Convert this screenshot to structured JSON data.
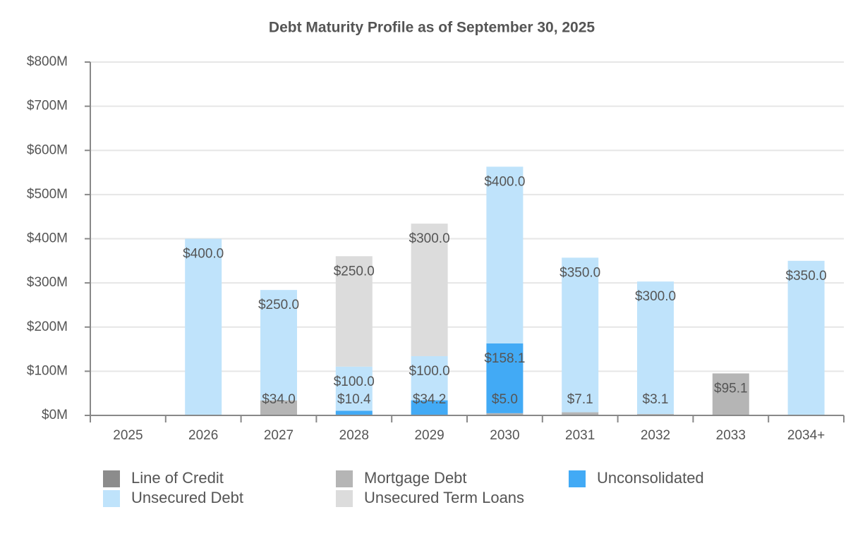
{
  "chart_data": {
    "type": "stacked_bar",
    "title": "Debt Maturity Profile as of September 30, 2025",
    "categories": [
      "2025",
      "2026",
      "2027",
      "2028",
      "2029",
      "2030",
      "2031",
      "2032",
      "2033",
      "2034+"
    ],
    "series": [
      {
        "name": "Line of Credit",
        "color": "#8c8c8c",
        "values": [
          null,
          null,
          null,
          null,
          null,
          null,
          null,
          null,
          null,
          null
        ]
      },
      {
        "name": "Mortgage Debt",
        "color": "#b5b5b5",
        "values": [
          null,
          null,
          34.0,
          null,
          null,
          5.0,
          7.1,
          3.1,
          95.1,
          null
        ],
        "value_labels": [
          null,
          null,
          "$34.0",
          null,
          null,
          "$5.0",
          "$7.1",
          "$3.1",
          "$95.1",
          null
        ]
      },
      {
        "name": "Unconsolidated",
        "color": "#42aaf5",
        "values": [
          null,
          null,
          null,
          10.4,
          34.2,
          158.1,
          null,
          null,
          null,
          null
        ],
        "value_labels": [
          null,
          null,
          null,
          "$10.4",
          "$34.2",
          "$158.1",
          null,
          null,
          null,
          null
        ]
      },
      {
        "name": "Unsecured Debt",
        "color": "#bfe3fb",
        "values": [
          null,
          400.0,
          250.0,
          100.0,
          100.0,
          400.0,
          350.0,
          300.0,
          null,
          350.0
        ],
        "value_labels": [
          null,
          "$400.0",
          "$250.0",
          "$100.0",
          "$100.0",
          "$400.0",
          "$350.0",
          "$300.0",
          null,
          "$350.0"
        ]
      },
      {
        "name": "Unsecured Term Loans",
        "color": "#dcdcdc",
        "values": [
          null,
          null,
          null,
          250.0,
          300.0,
          null,
          null,
          null,
          null,
          null
        ],
        "value_labels": [
          null,
          null,
          null,
          "$250.0",
          "$300.0",
          null,
          null,
          null,
          null,
          null
        ]
      }
    ],
    "ylim": [
      0,
      800
    ],
    "yticks": [
      {
        "value": 0,
        "label": "$0M"
      },
      {
        "value": 100,
        "label": "$100M"
      },
      {
        "value": 200,
        "label": "$200M"
      },
      {
        "value": 300,
        "label": "$300M"
      },
      {
        "value": 400,
        "label": "$400M"
      },
      {
        "value": 500,
        "label": "$500M"
      },
      {
        "value": 600,
        "label": "$600M"
      },
      {
        "value": 700,
        "label": "$700M"
      },
      {
        "value": 800,
        "label": "$800M"
      }
    ],
    "grid": true
  }
}
